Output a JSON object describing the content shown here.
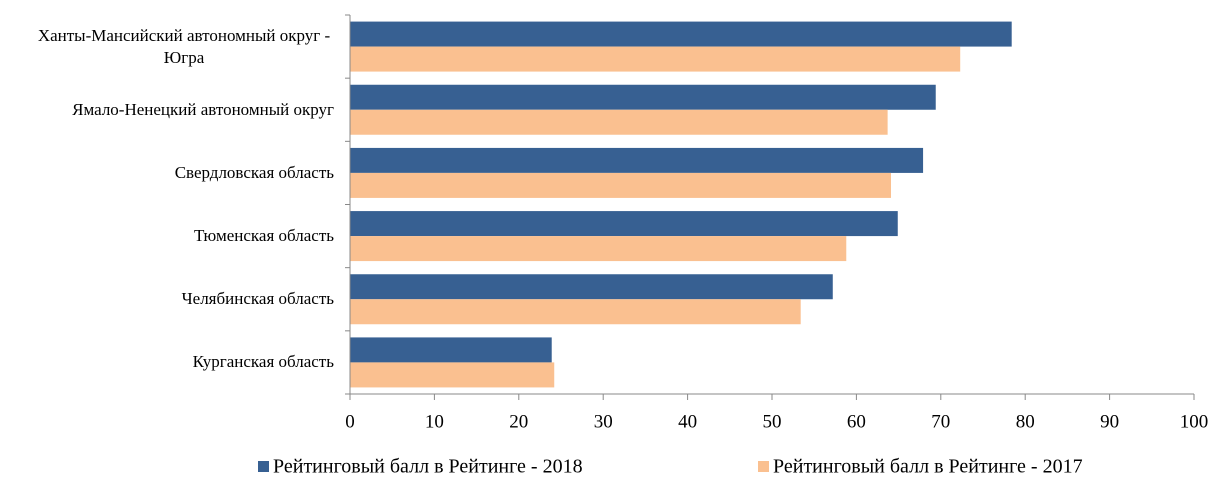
{
  "chart_data": {
    "type": "bar",
    "orientation": "horizontal",
    "categories": [
      "Ханты-Мансийский автономный округ - Югра",
      "Ямало-Ненецкий автономный округ",
      "Свердловская область",
      "Тюменская область",
      "Челябинская область",
      "Курганская область"
    ],
    "series": [
      {
        "name": "Рейтинговый балл в Рейтинге - 2018",
        "color": "#376092",
        "values": [
          78.4,
          69.4,
          67.9,
          64.9,
          57.2,
          23.9
        ]
      },
      {
        "name": "Рейтинговый балл в Рейтинге - 2017",
        "color": "#fac090",
        "values": [
          72.3,
          63.7,
          64.1,
          58.8,
          53.4,
          24.2
        ]
      }
    ],
    "xlim": [
      0,
      100
    ],
    "xticks": [
      0,
      10,
      20,
      30,
      40,
      50,
      60,
      70,
      80,
      90,
      100
    ],
    "legend": "bottom"
  }
}
